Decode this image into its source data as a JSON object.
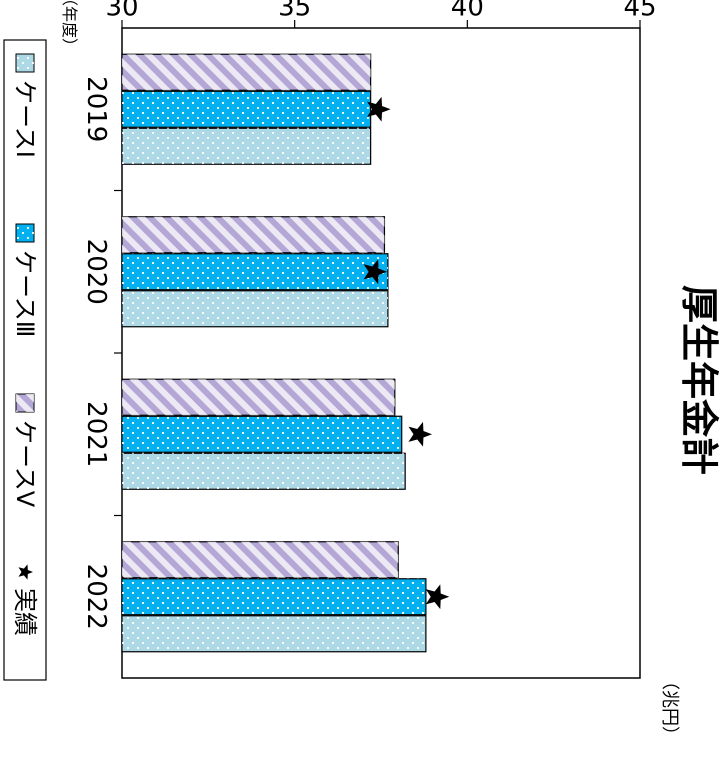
{
  "chart_data": {
    "type": "bar",
    "orientation": "horizontal",
    "title": "厚生年金計",
    "unit_label": "（兆円）",
    "year_unit_label": "（年度）",
    "categories": [
      "2019",
      "2020",
      "2021",
      "2022"
    ],
    "series": [
      {
        "name": "ケースⅠ",
        "values": [
          37.2,
          37.7,
          38.2,
          38.8
        ],
        "color": "#add8e6",
        "pattern": "dots"
      },
      {
        "name": "ケースⅢ",
        "values": [
          37.2,
          37.7,
          38.1,
          38.8
        ],
        "color": "#00b0f0",
        "pattern": "dots"
      },
      {
        "name": "ケースⅤ",
        "values": [
          37.2,
          37.6,
          37.9,
          38.0
        ],
        "color": "#b4a7d6",
        "pattern": "diagonal-stripes"
      }
    ],
    "actual": {
      "name": "実績",
      "values": [
        37.4,
        37.3,
        38.6,
        39.1
      ],
      "marker": "star"
    },
    "axis": {
      "min": 30,
      "max": 45,
      "ticks": [
        30,
        35,
        40,
        45
      ]
    },
    "grid": false,
    "legend_position": "bottom"
  }
}
